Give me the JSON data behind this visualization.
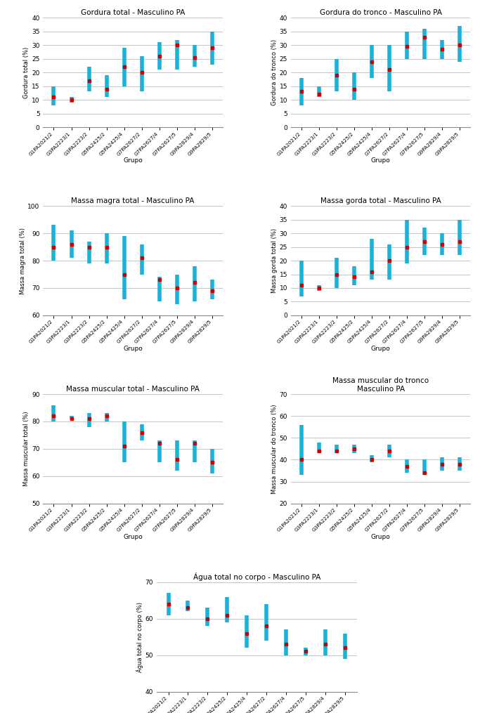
{
  "groups": [
    "G1PA2021/2",
    "G3PA2223/1",
    "G3PA2223/2",
    "G5PA2425/2",
    "G5PA2425/4",
    "G7PA2627/2",
    "G7PA2627/4",
    "G7PA2627/5",
    "G9PA2829/4",
    "G9PA2829/5"
  ],
  "gordura_total": {
    "title": "Gordura total - Masculino PA",
    "ylabel": "Gordura total (%)",
    "ylim": [
      0,
      40
    ],
    "yticks": [
      0,
      5,
      10,
      15,
      20,
      25,
      30,
      35,
      40
    ],
    "median": [
      11,
      10,
      17,
      14,
      22,
      20,
      26,
      30,
      25.5,
      29
    ],
    "low": [
      8,
      9,
      13,
      11,
      15,
      13,
      21,
      21,
      22,
      23
    ],
    "high": [
      15,
      11,
      22,
      19,
      29,
      26,
      31,
      32,
      30,
      35
    ]
  },
  "gordura_tronco": {
    "title": "Gordura do tronco - Masculino PA",
    "ylabel": "Gordura do tronco (%)",
    "ylim": [
      0,
      40
    ],
    "yticks": [
      0,
      5,
      10,
      15,
      20,
      25,
      30,
      35,
      40
    ],
    "median": [
      13,
      12,
      19,
      14,
      24,
      21,
      29.5,
      33,
      28.5,
      30
    ],
    "low": [
      8,
      11,
      13,
      10,
      18,
      13,
      25,
      25,
      25,
      24
    ],
    "high": [
      18,
      15,
      25,
      20,
      30,
      30,
      35,
      36,
      32,
      37
    ]
  },
  "massa_magra_total": {
    "title": "Massa magra total - Masculino PA",
    "ylabel": "Massa magra total (%)",
    "ylim": [
      60,
      100
    ],
    "yticks": [
      60,
      70,
      80,
      90,
      100
    ],
    "median": [
      85,
      86,
      85,
      85,
      75,
      81,
      73,
      70,
      72,
      69
    ],
    "low": [
      80,
      81,
      79,
      79,
      66,
      75,
      65,
      64,
      65,
      66
    ],
    "high": [
      93,
      91,
      87,
      90,
      89,
      86,
      74,
      75,
      78,
      73
    ]
  },
  "massa_gorda_total": {
    "title": "Massa gorda total - Masculino PA",
    "ylabel": "Massa gorda total (%)",
    "ylim": [
      0,
      40
    ],
    "yticks": [
      0,
      5,
      10,
      15,
      20,
      25,
      30,
      35,
      40
    ],
    "median": [
      11,
      10,
      15,
      14,
      16,
      20,
      25,
      27,
      26,
      27
    ],
    "low": [
      7,
      9,
      10,
      11,
      13,
      13,
      19,
      22,
      22,
      22
    ],
    "high": [
      20,
      11,
      21,
      18,
      28,
      26,
      35,
      32,
      30,
      35
    ]
  },
  "massa_muscular_total": {
    "title": "Massa muscular total - Masculino PA",
    "ylabel": "Massa muscular total (%)",
    "ylim": [
      50,
      90
    ],
    "yticks": [
      50,
      60,
      70,
      80,
      90
    ],
    "median": [
      82,
      81,
      81,
      82,
      71,
      76,
      72,
      66,
      72,
      65
    ],
    "low": [
      80,
      81,
      78,
      80,
      65,
      73,
      65,
      62,
      65,
      61
    ],
    "high": [
      86,
      82,
      83,
      83,
      80,
      79,
      73,
      73,
      73,
      70
    ]
  },
  "massa_muscular_tronco": {
    "title": "Massa muscular do tronco\nMasculino PA",
    "ylabel": "Massa muscular do tronco (%)",
    "ylim": [
      20,
      70
    ],
    "yticks": [
      20,
      30,
      40,
      50,
      60,
      70
    ],
    "median": [
      40,
      44,
      44,
      45,
      40,
      44,
      37,
      34,
      38,
      38
    ],
    "low": [
      33,
      43,
      43,
      43,
      39,
      41,
      34,
      33,
      35,
      35
    ],
    "high": [
      56,
      48,
      47,
      47,
      42,
      47,
      40,
      40,
      41,
      41
    ]
  },
  "agua_total": {
    "title": "Água total no corpo - Masculino PA",
    "ylabel": "Água total no corpo (%)",
    "ylim": [
      40,
      70
    ],
    "yticks": [
      40,
      50,
      60,
      70
    ],
    "median": [
      64,
      63,
      60,
      61,
      56,
      58,
      53,
      51,
      53,
      52
    ],
    "low": [
      61,
      62,
      58,
      59,
      52,
      54,
      50,
      50,
      50,
      49
    ],
    "high": [
      67,
      65,
      63,
      66,
      61,
      64,
      57,
      52,
      57,
      56
    ]
  },
  "bar_color": "#1ab2d8",
  "marker_color": "#cc0000",
  "xlabel": "Grupo"
}
